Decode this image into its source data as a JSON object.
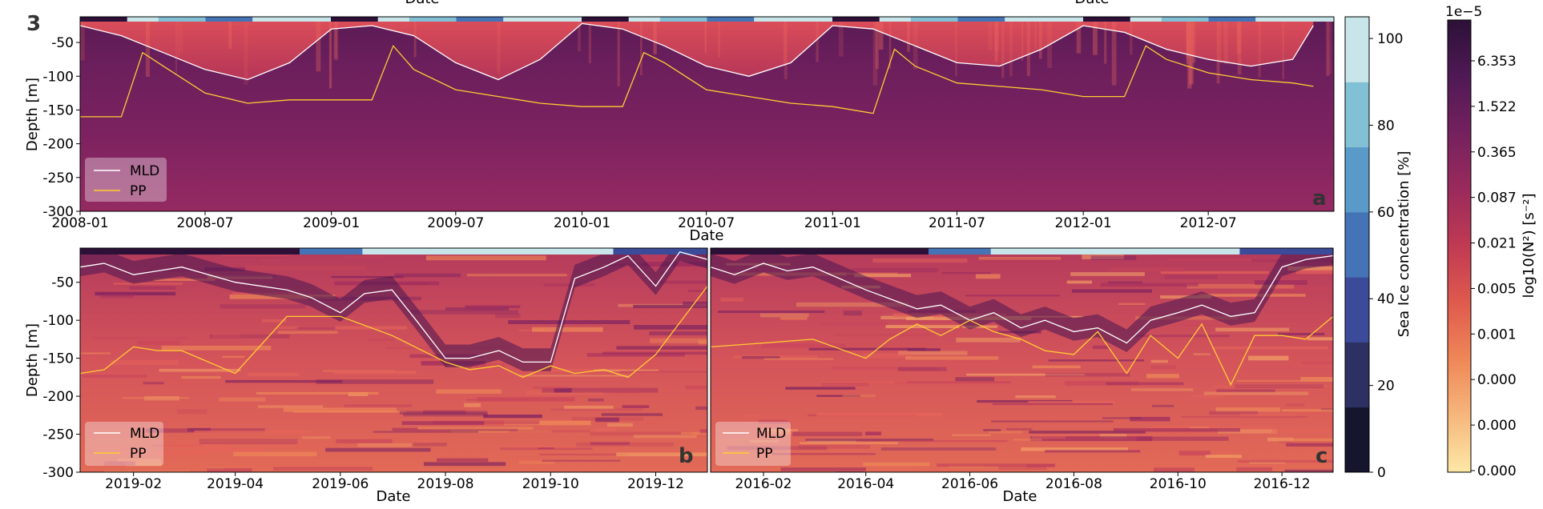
{
  "figure": {
    "panel_number": "3",
    "clipped_top_labels": [
      "Date",
      "Date"
    ]
  },
  "chart_data": [
    {
      "panel": "a",
      "type": "heatmap",
      "xlabel": "Date",
      "ylabel": "Depth [m]",
      "x_range": [
        "2008-01",
        "2012-12-31"
      ],
      "ylim": [
        -300,
        -12
      ],
      "x_ticks": [
        "2008-01",
        "2008-07",
        "2009-01",
        "2009-07",
        "2010-01",
        "2010-07",
        "2011-01",
        "2011-07",
        "2012-01",
        "2012-07"
      ],
      "y_ticks": [
        -50,
        -100,
        -150,
        -200,
        -250,
        -300
      ],
      "legend": [
        "MLD",
        "PP"
      ],
      "legend_position": "lower-left",
      "series": [
        {
          "name": "MLD",
          "color": "#ffffff",
          "x": [
            "2008-01",
            "2008-03",
            "2008-05",
            "2008-07",
            "2008-09",
            "2008-11",
            "2009-01",
            "2009-03",
            "2009-05",
            "2009-07",
            "2009-09",
            "2009-11",
            "2010-01",
            "2010-03",
            "2010-05",
            "2010-07",
            "2010-09",
            "2010-11",
            "2011-01",
            "2011-03",
            "2011-05",
            "2011-07",
            "2011-09",
            "2011-11",
            "2012-01",
            "2012-03",
            "2012-05",
            "2012-07",
            "2012-09",
            "2012-11",
            "2012-12"
          ],
          "y": [
            -25,
            -40,
            -65,
            -90,
            -105,
            -80,
            -30,
            -25,
            -40,
            -80,
            -105,
            -75,
            -22,
            -30,
            -55,
            -85,
            -100,
            -80,
            -25,
            -30,
            -55,
            -80,
            -85,
            -60,
            -25,
            -35,
            -60,
            -75,
            -85,
            -75,
            -25
          ]
        },
        {
          "name": "PP",
          "color": "#ffcc33",
          "x": [
            "2008-01",
            "2008-03",
            "2008-04",
            "2008-05",
            "2008-07",
            "2008-09",
            "2008-11",
            "2009-01",
            "2009-03",
            "2009-04",
            "2009-05",
            "2009-07",
            "2009-09",
            "2009-11",
            "2010-01",
            "2010-03",
            "2010-04",
            "2010-05",
            "2010-07",
            "2010-09",
            "2010-11",
            "2011-01",
            "2011-03",
            "2011-04",
            "2011-05",
            "2011-07",
            "2011-09",
            "2011-11",
            "2012-01",
            "2012-03",
            "2012-04",
            "2012-05",
            "2012-07",
            "2012-09",
            "2012-11",
            "2012-12"
          ],
          "y": [
            -160,
            -160,
            -65,
            -85,
            -125,
            -140,
            -135,
            -135,
            -135,
            -55,
            -90,
            -120,
            -130,
            -140,
            -145,
            -145,
            -65,
            -80,
            -120,
            -130,
            -140,
            -145,
            -155,
            -60,
            -85,
            -110,
            -115,
            -120,
            -130,
            -130,
            -55,
            -75,
            -95,
            -105,
            -110,
            -115
          ]
        }
      ]
    },
    {
      "panel": "b",
      "type": "heatmap",
      "xlabel": "Date",
      "ylabel": "Depth [m]",
      "x_range": [
        "2019-01-01",
        "2019-12-31"
      ],
      "ylim": [
        -300,
        -5
      ],
      "x_ticks": [
        "2019-02",
        "2019-04",
        "2019-06",
        "2019-08",
        "2019-10",
        "2019-12"
      ],
      "y_ticks": [
        -50,
        -100,
        -150,
        -200,
        -250,
        -300
      ],
      "legend": [
        "MLD",
        "PP"
      ],
      "legend_position": "lower-left",
      "series": [
        {
          "name": "MLD",
          "color": "#ffffff",
          "x": [
            "2019-01-01",
            "2019-01-15",
            "2019-02-01",
            "2019-02-15",
            "2019-03-01",
            "2019-04-01",
            "2019-05-01",
            "2019-05-15",
            "2019-06-01",
            "2019-06-15",
            "2019-07-01",
            "2019-07-15",
            "2019-08-01",
            "2019-08-15",
            "2019-09-01",
            "2019-09-15",
            "2019-10-01",
            "2019-10-15",
            "2019-11-01",
            "2019-11-15",
            "2019-12-01",
            "2019-12-15",
            "2019-12-31"
          ],
          "y": [
            -30,
            -25,
            -40,
            -35,
            -30,
            -50,
            -60,
            -70,
            -90,
            -65,
            -60,
            -100,
            -150,
            -150,
            -140,
            -155,
            -155,
            -45,
            -30,
            -15,
            -55,
            -10,
            -20
          ]
        },
        {
          "name": "PP",
          "color": "#ffcc33",
          "x": [
            "2019-01-01",
            "2019-01-15",
            "2019-02-01",
            "2019-02-15",
            "2019-03-01",
            "2019-04-01",
            "2019-05-01",
            "2019-06-01",
            "2019-07-01",
            "2019-08-01",
            "2019-08-15",
            "2019-09-01",
            "2019-09-15",
            "2019-10-01",
            "2019-10-15",
            "2019-11-01",
            "2019-11-15",
            "2019-12-01",
            "2019-12-31"
          ],
          "y": [
            -170,
            -165,
            -135,
            -140,
            -140,
            -170,
            -95,
            -95,
            -120,
            -155,
            -165,
            -160,
            -175,
            -160,
            -170,
            -165,
            -175,
            -145,
            -55
          ]
        }
      ]
    },
    {
      "panel": "c",
      "type": "heatmap",
      "xlabel": "Date",
      "ylabel": "",
      "x_range": [
        "2016-01-01",
        "2016-12-31"
      ],
      "ylim": [
        -300,
        -5
      ],
      "x_ticks": [
        "2016-02",
        "2016-04",
        "2016-06",
        "2016-08",
        "2016-10",
        "2016-12"
      ],
      "y_ticks": [],
      "legend": [
        "MLD",
        "PP"
      ],
      "legend_position": "lower-left",
      "series": [
        {
          "name": "MLD",
          "color": "#ffffff",
          "x": [
            "2016-01-01",
            "2016-01-15",
            "2016-02-01",
            "2016-02-15",
            "2016-03-01",
            "2016-04-01",
            "2016-05-01",
            "2016-05-15",
            "2016-06-01",
            "2016-06-15",
            "2016-07-01",
            "2016-07-15",
            "2016-08-01",
            "2016-08-15",
            "2016-09-01",
            "2016-09-15",
            "2016-10-01",
            "2016-10-15",
            "2016-11-01",
            "2016-11-15",
            "2016-12-01",
            "2016-12-15",
            "2016-12-31"
          ],
          "y": [
            -30,
            -40,
            -25,
            -35,
            -30,
            -60,
            -85,
            -80,
            -100,
            -90,
            -110,
            -100,
            -115,
            -110,
            -130,
            -100,
            -90,
            -80,
            -95,
            -90,
            -30,
            -20,
            -15
          ]
        },
        {
          "name": "PP",
          "color": "#ffcc33",
          "x": [
            "2016-01-01",
            "2016-02-01",
            "2016-03-01",
            "2016-04-01",
            "2016-04-15",
            "2016-05-01",
            "2016-05-15",
            "2016-06-01",
            "2016-06-15",
            "2016-07-01",
            "2016-07-15",
            "2016-08-01",
            "2016-08-15",
            "2016-09-01",
            "2016-09-15",
            "2016-10-01",
            "2016-10-15",
            "2016-11-01",
            "2016-11-15",
            "2016-12-01",
            "2016-12-15",
            "2016-12-31"
          ],
          "y": [
            -135,
            -130,
            -125,
            -150,
            -125,
            -105,
            -120,
            -100,
            -115,
            -125,
            -140,
            -145,
            -115,
            -170,
            -120,
            -150,
            -105,
            -185,
            -120,
            -120,
            -125,
            -95
          ]
        }
      ]
    }
  ],
  "colorbars": [
    {
      "name": "sea-ice",
      "label": "Sea Ice concentration [%]",
      "ticks": [
        "0",
        "20",
        "40",
        "60",
        "80",
        "100"
      ],
      "colors": [
        "#16152e",
        "#2c3063",
        "#3b4a99",
        "#4474b6",
        "#5a9ac8",
        "#82c0d6",
        "#c8e6ea"
      ]
    },
    {
      "name": "n2",
      "label": "log10(N²) [s⁻²]",
      "offset": "1e−5",
      "ticks": [
        "6.353",
        "1.522",
        "0.365",
        "0.087",
        "0.021",
        "0.005",
        "0.001",
        "0.000",
        "0.000",
        "0.000"
      ],
      "colors": [
        "#fde8a6",
        "#f6b77c",
        "#ef8758",
        "#df5a4d",
        "#c03a53",
        "#9a2a5c",
        "#74215e",
        "#4f1955",
        "#2c1037"
      ]
    }
  ]
}
